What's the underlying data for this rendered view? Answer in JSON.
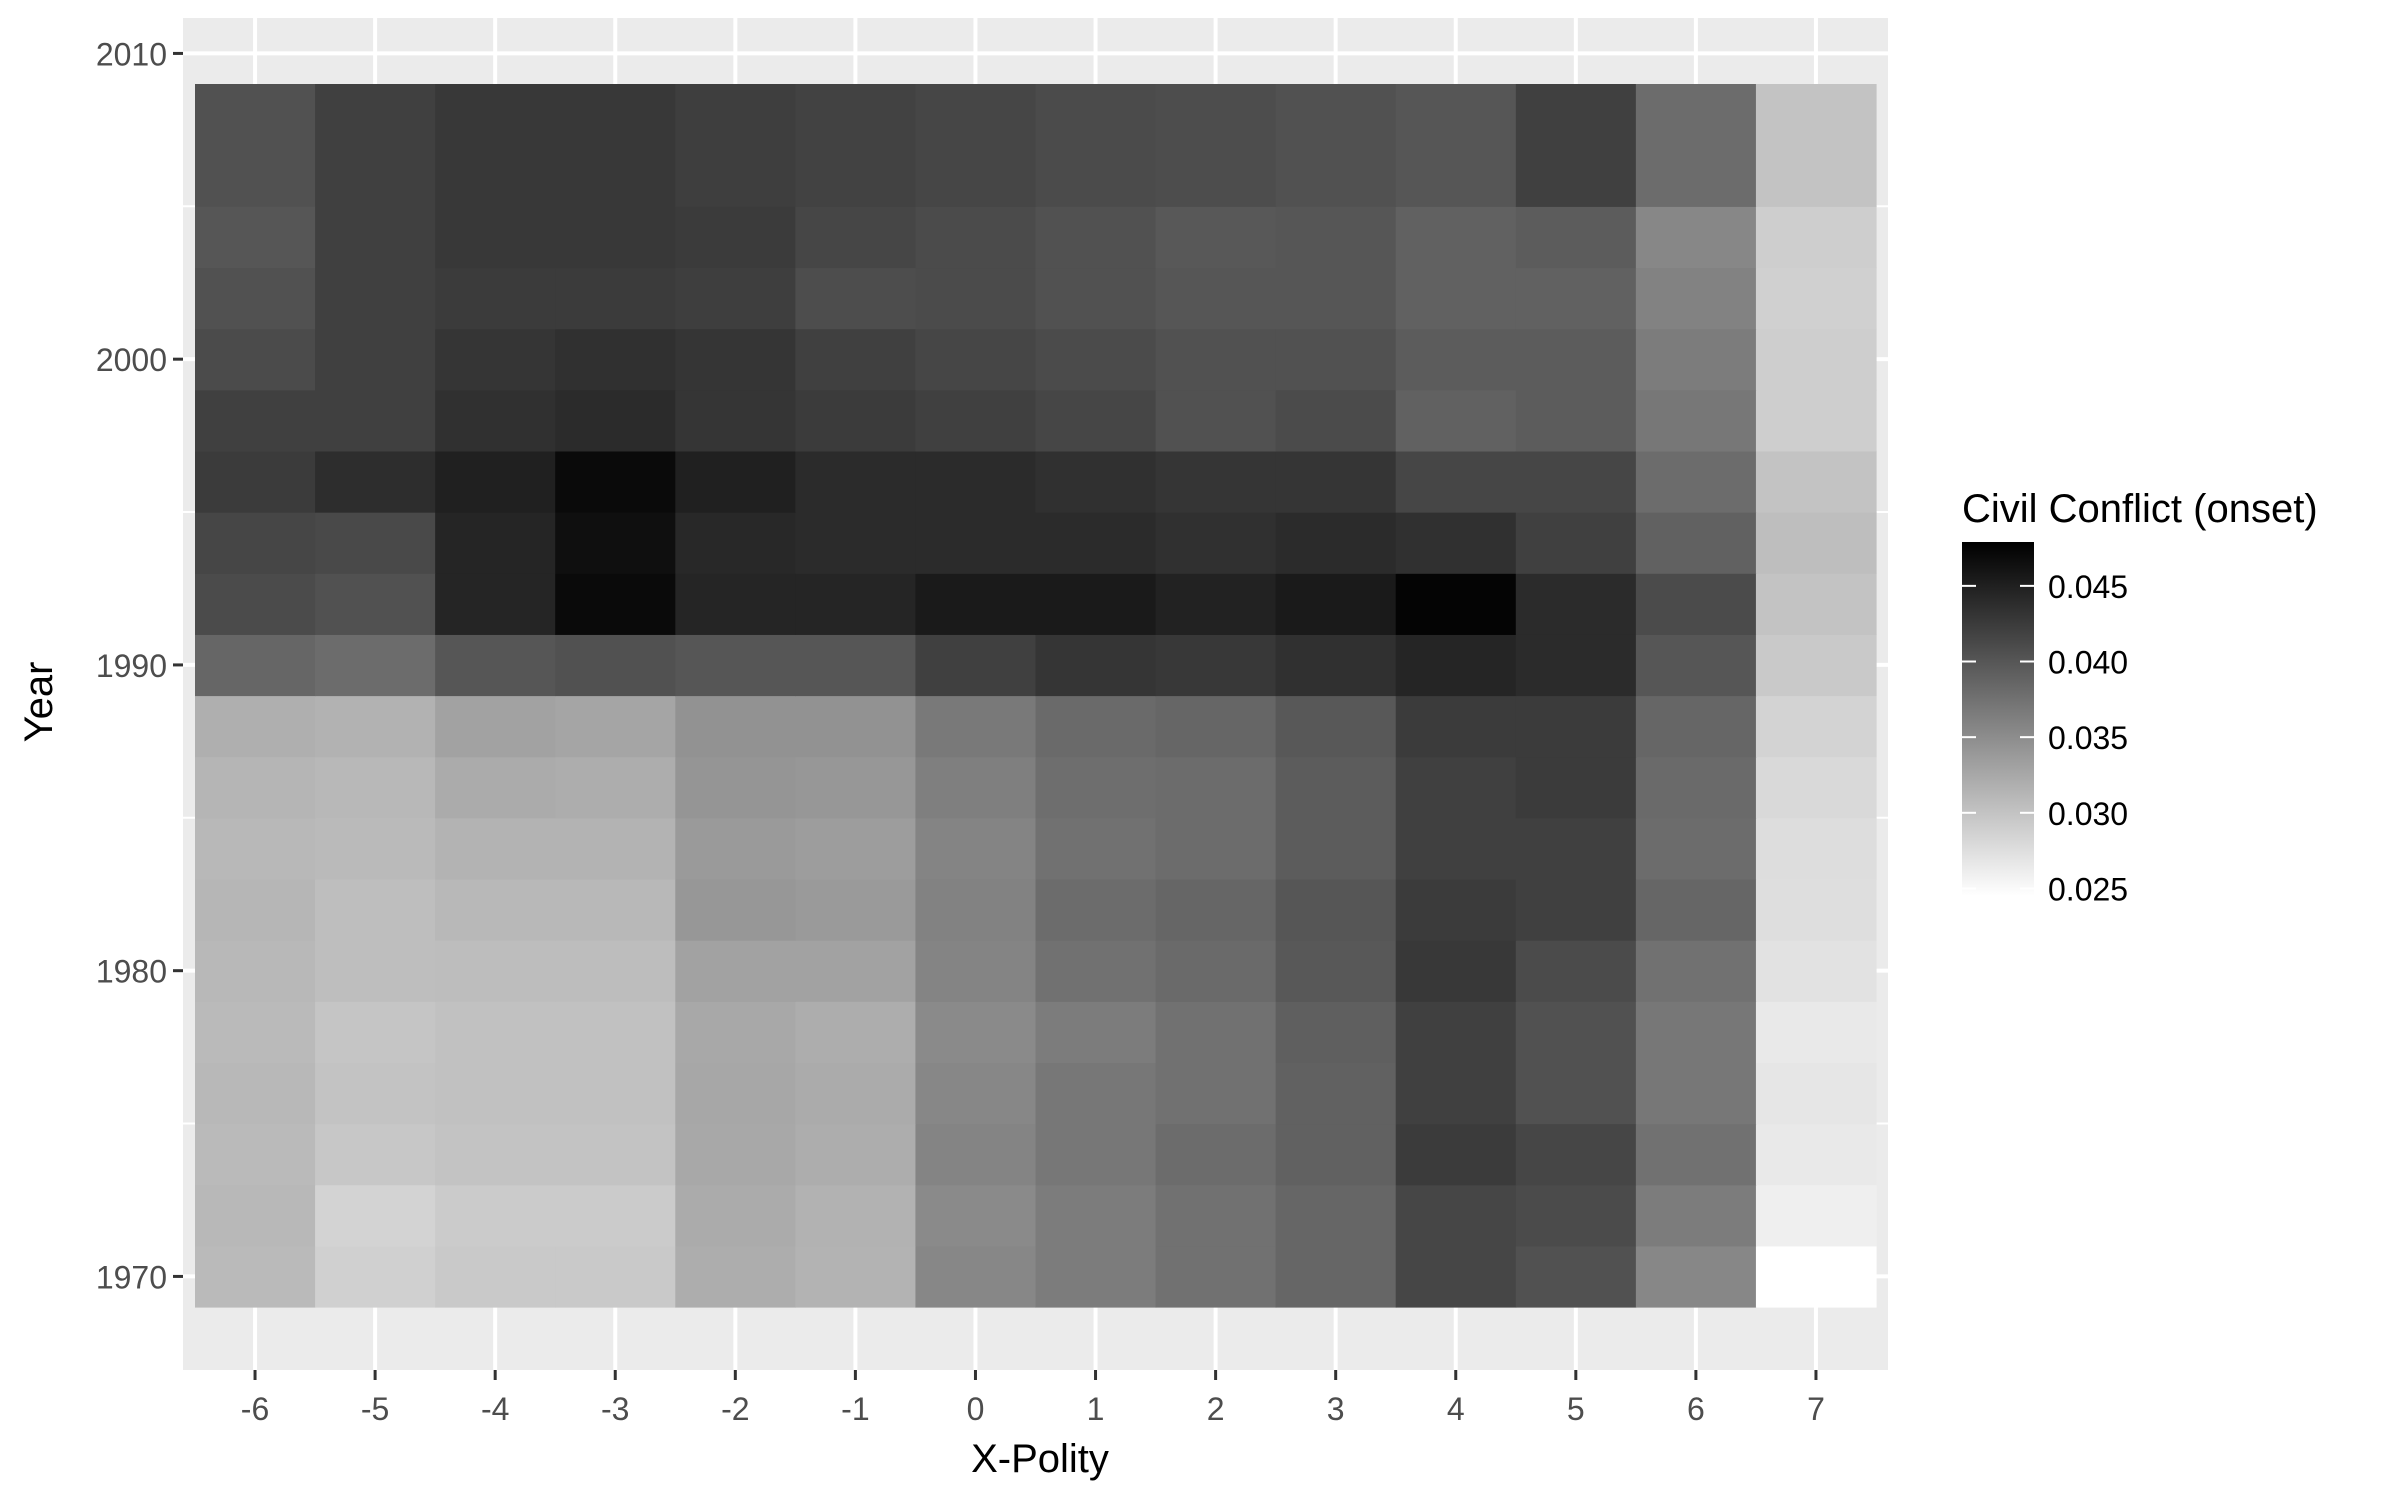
{
  "chart_data": {
    "type": "heatmap",
    "title": "",
    "xlabel": "X-Polity",
    "ylabel": "Year",
    "x": [
      -6,
      -5,
      -4,
      -3,
      -2,
      -1,
      0,
      1,
      2,
      3,
      4,
      5,
      6,
      7
    ],
    "x_tick_labels": [
      "-6",
      "-5",
      "-4",
      "-3",
      "-2",
      "-1",
      "0",
      "1",
      "2",
      "3",
      "4",
      "5",
      "6",
      "7"
    ],
    "xlim": [
      -6.5,
      7.5
    ],
    "y_tick_values": [
      1970,
      1980,
      1990,
      2000,
      2010
    ],
    "y_tick_labels": [
      "1970",
      "1980",
      "1990",
      "2000",
      "2010"
    ],
    "ylim": [
      1969,
      2010
    ],
    "grid": true,
    "legend": {
      "title": "Civil Conflict (onset)",
      "position": "right",
      "tick_values": [
        0.025,
        0.03,
        0.035,
        0.04,
        0.045
      ],
      "tick_labels": [
        "0.025",
        "0.030",
        "0.035",
        "0.040",
        "0.045"
      ],
      "range": [
        0.0245,
        0.0479
      ],
      "low_color": "#ffffff",
      "high_color": "#000000"
    },
    "panel_background": "#ebebeb",
    "grid_color": "#ffffff",
    "rows": [
      {
        "year": 1970,
        "values": [
          0.0308,
          0.0288,
          0.0295,
          0.0295,
          0.032,
          0.0315,
          0.0355,
          0.0365,
          0.0375,
          0.0385,
          0.0415,
          0.0405,
          0.0355,
          0.0245
        ]
      },
      {
        "year": 1972,
        "values": [
          0.031,
          0.0285,
          0.0293,
          0.0293,
          0.0322,
          0.0316,
          0.0352,
          0.0365,
          0.0375,
          0.0385,
          0.0415,
          0.041,
          0.0365,
          0.026
        ]
      },
      {
        "year": 1974,
        "values": [
          0.0308,
          0.0296,
          0.03,
          0.03,
          0.0325,
          0.032,
          0.0358,
          0.037,
          0.038,
          0.039,
          0.0425,
          0.0415,
          0.0375,
          0.0265
        ]
      },
      {
        "year": 1976,
        "values": [
          0.031,
          0.03,
          0.0302,
          0.0302,
          0.0326,
          0.0322,
          0.0355,
          0.037,
          0.0375,
          0.039,
          0.042,
          0.0405,
          0.037,
          0.0268
        ]
      },
      {
        "year": 1978,
        "values": [
          0.0308,
          0.0298,
          0.0302,
          0.0302,
          0.0325,
          0.032,
          0.0352,
          0.0365,
          0.0375,
          0.0392,
          0.042,
          0.0405,
          0.037,
          0.0265
        ]
      },
      {
        "year": 1980,
        "values": [
          0.031,
          0.0305,
          0.0306,
          0.0306,
          0.033,
          0.033,
          0.0358,
          0.0375,
          0.0382,
          0.0398,
          0.0428,
          0.041,
          0.0375,
          0.0272
        ]
      },
      {
        "year": 1982,
        "values": [
          0.0312,
          0.0305,
          0.031,
          0.031,
          0.034,
          0.0338,
          0.036,
          0.038,
          0.0385,
          0.04,
          0.0425,
          0.042,
          0.0385,
          0.0275
        ]
      },
      {
        "year": 1984,
        "values": [
          0.031,
          0.0308,
          0.0315,
          0.0315,
          0.0338,
          0.0335,
          0.0358,
          0.0375,
          0.038,
          0.0395,
          0.042,
          0.042,
          0.038,
          0.0276
        ]
      },
      {
        "year": 1986,
        "values": [
          0.0313,
          0.031,
          0.0322,
          0.032,
          0.0342,
          0.034,
          0.0362,
          0.0378,
          0.038,
          0.0395,
          0.042,
          0.0425,
          0.0382,
          0.028
        ]
      },
      {
        "year": 1988,
        "values": [
          0.0318,
          0.0316,
          0.033,
          0.0328,
          0.0345,
          0.0345,
          0.0368,
          0.0382,
          0.0385,
          0.0398,
          0.0425,
          0.0425,
          0.0385,
          0.0285
        ]
      },
      {
        "year": 1990,
        "values": [
          0.0385,
          0.038,
          0.04,
          0.0405,
          0.04,
          0.04,
          0.042,
          0.043,
          0.0428,
          0.0435,
          0.0445,
          0.044,
          0.04,
          0.0295
        ]
      },
      {
        "year": 1992,
        "values": [
          0.041,
          0.0405,
          0.0445,
          0.047,
          0.0445,
          0.0445,
          0.0455,
          0.0455,
          0.0448,
          0.0455,
          0.0475,
          0.044,
          0.041,
          0.03
        ]
      },
      {
        "year": 1994,
        "values": [
          0.0415,
          0.0412,
          0.0445,
          0.0465,
          0.0442,
          0.044,
          0.044,
          0.044,
          0.0435,
          0.044,
          0.0435,
          0.042,
          0.039,
          0.0305
        ]
      },
      {
        "year": 1996,
        "values": [
          0.0425,
          0.0438,
          0.045,
          0.047,
          0.045,
          0.044,
          0.044,
          0.0435,
          0.043,
          0.043,
          0.0415,
          0.0415,
          0.038,
          0.03
        ]
      },
      {
        "year": 1998,
        "values": [
          0.042,
          0.042,
          0.0435,
          0.044,
          0.043,
          0.0425,
          0.042,
          0.0415,
          0.0405,
          0.041,
          0.039,
          0.0395,
          0.037,
          0.029
        ]
      },
      {
        "year": 2000,
        "values": [
          0.041,
          0.042,
          0.043,
          0.0435,
          0.043,
          0.042,
          0.0415,
          0.041,
          0.0405,
          0.0405,
          0.0395,
          0.0395,
          0.0365,
          0.029
        ]
      },
      {
        "year": 2002,
        "values": [
          0.0405,
          0.042,
          0.0425,
          0.0425,
          0.0422,
          0.0408,
          0.041,
          0.0405,
          0.04,
          0.04,
          0.039,
          0.039,
          0.036,
          0.0288
        ]
      },
      {
        "year": 2004,
        "values": [
          0.04,
          0.042,
          0.0428,
          0.0428,
          0.0425,
          0.0415,
          0.041,
          0.0405,
          0.0398,
          0.04,
          0.039,
          0.0395,
          0.0355,
          0.029
        ]
      },
      {
        "year": 2006,
        "values": [
          0.0405,
          0.042,
          0.0428,
          0.0428,
          0.0422,
          0.0418,
          0.0415,
          0.041,
          0.0408,
          0.0405,
          0.04,
          0.042,
          0.038,
          0.03
        ]
      }
    ]
  }
}
